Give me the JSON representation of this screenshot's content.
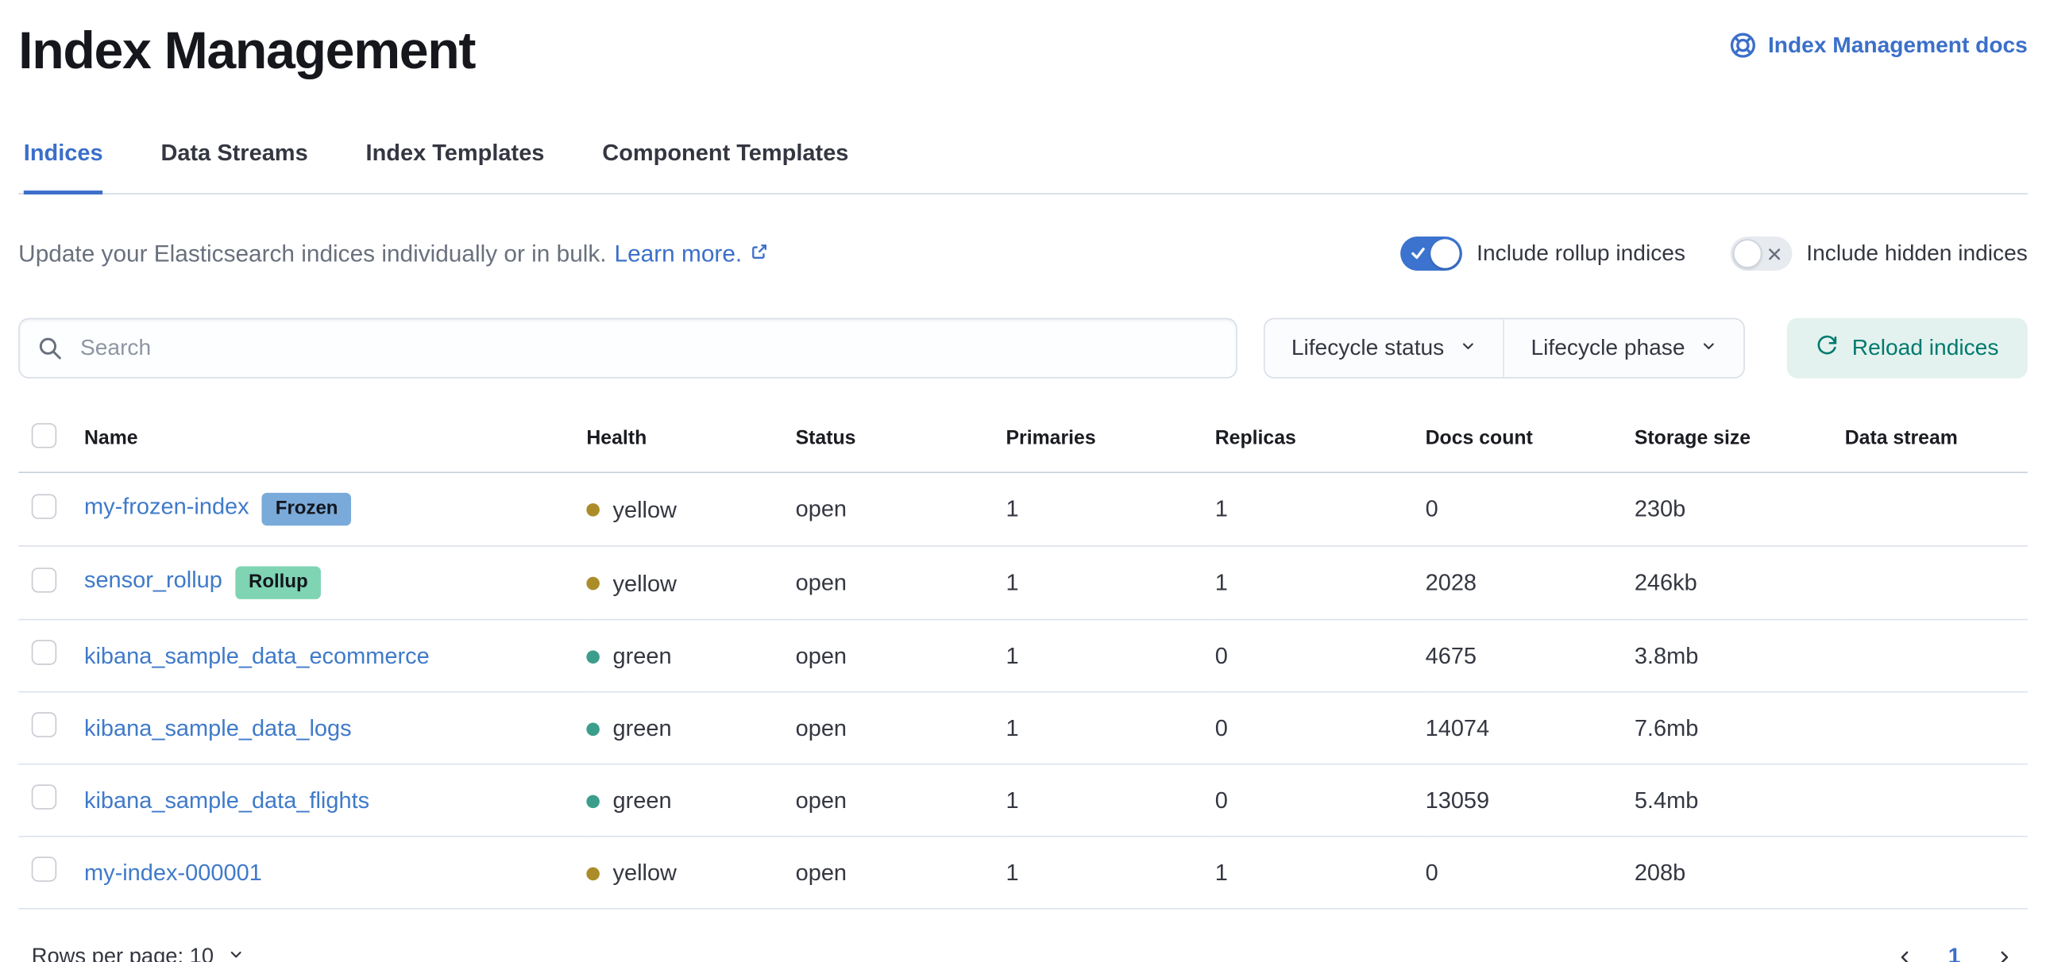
{
  "header": {
    "title": "Index Management",
    "docs_link_label": "Index Management docs",
    "docs_icon": "life-ring-icon"
  },
  "tabs": [
    {
      "label": "Indices",
      "active": true
    },
    {
      "label": "Data Streams",
      "active": false
    },
    {
      "label": "Index Templates",
      "active": false
    },
    {
      "label": "Component Templates",
      "active": false
    }
  ],
  "intro": {
    "text": "Update your Elasticsearch indices individually or in bulk.",
    "link_label": "Learn more.",
    "link_icon": "external-link-icon"
  },
  "toggles": [
    {
      "label": "Include rollup indices",
      "on": true
    },
    {
      "label": "Include hidden indices",
      "on": false
    }
  ],
  "controls": {
    "search_placeholder": "Search",
    "search_icon": "magnifier-icon",
    "filters": [
      "Lifecycle status",
      "Lifecycle phase"
    ],
    "reload_label": "Reload indices",
    "reload_icon": "refresh-icon"
  },
  "table": {
    "columns": [
      "Name",
      "Health",
      "Status",
      "Primaries",
      "Replicas",
      "Docs count",
      "Storage size",
      "Data stream"
    ],
    "rows": [
      {
        "name": "my-frozen-index",
        "badge": "Frozen",
        "badge_key": "frozen",
        "health": "yellow",
        "status": "open",
        "primaries": "1",
        "replicas": "1",
        "docs_count": "0",
        "storage_size": "230b",
        "data_stream": ""
      },
      {
        "name": "sensor_rollup",
        "badge": "Rollup",
        "badge_key": "rollup",
        "health": "yellow",
        "status": "open",
        "primaries": "1",
        "replicas": "1",
        "docs_count": "2028",
        "storage_size": "246kb",
        "data_stream": ""
      },
      {
        "name": "kibana_sample_data_ecommerce",
        "badge": "",
        "badge_key": "",
        "health": "green",
        "status": "open",
        "primaries": "1",
        "replicas": "0",
        "docs_count": "4675",
        "storage_size": "3.8mb",
        "data_stream": ""
      },
      {
        "name": "kibana_sample_data_logs",
        "badge": "",
        "badge_key": "",
        "health": "green",
        "status": "open",
        "primaries": "1",
        "replicas": "0",
        "docs_count": "14074",
        "storage_size": "7.6mb",
        "data_stream": ""
      },
      {
        "name": "kibana_sample_data_flights",
        "badge": "",
        "badge_key": "",
        "health": "green",
        "status": "open",
        "primaries": "1",
        "replicas": "0",
        "docs_count": "13059",
        "storage_size": "5.4mb",
        "data_stream": ""
      },
      {
        "name": "my-index-000001",
        "badge": "",
        "badge_key": "",
        "health": "yellow",
        "status": "open",
        "primaries": "1",
        "replicas": "1",
        "docs_count": "0",
        "storage_size": "208b",
        "data_stream": ""
      }
    ]
  },
  "pagination": {
    "rows_per_page_label": "Rows per page: 10",
    "page": "1"
  },
  "colors": {
    "primary": "#3b6fc9",
    "link": "#3f7ac9",
    "toggle_on": "#3b73ce",
    "success_bg": "#e3f2ee",
    "success_text": "#00796f",
    "health_yellow": "#ab8c28",
    "health_green": "#3b9e8c",
    "badge_frozen": "#79aad9",
    "badge_rollup": "#7fd4b3"
  }
}
